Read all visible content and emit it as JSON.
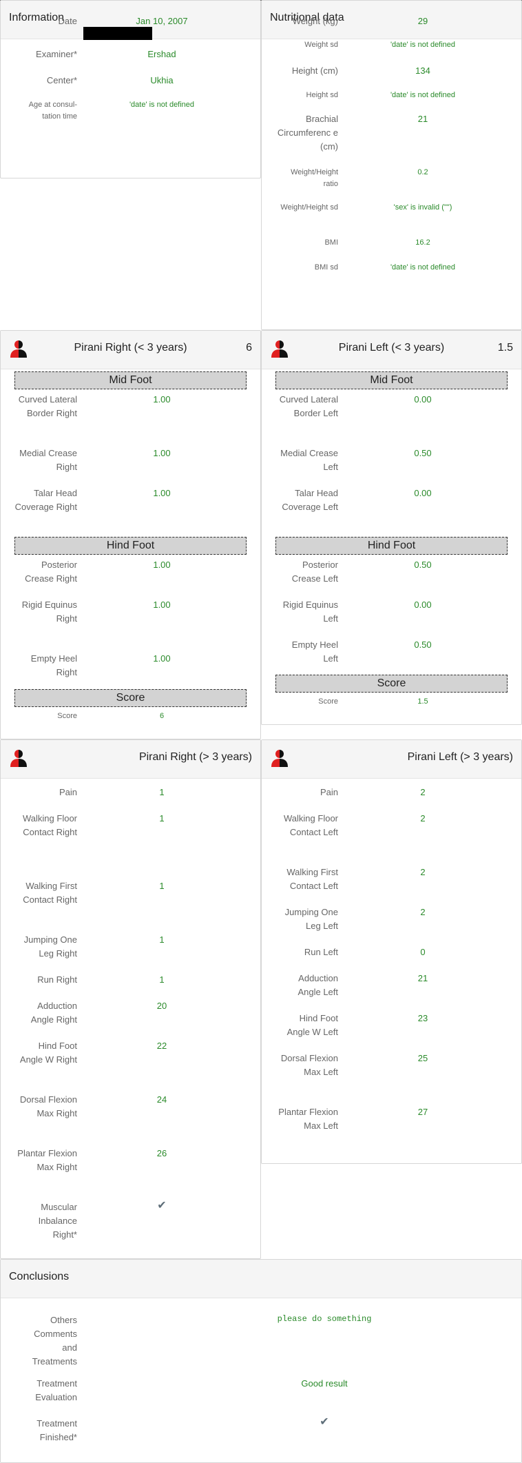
{
  "information": {
    "title": "Information",
    "date_label": "Date",
    "date_value": "Jan 10, 2007",
    "examiner_label": "Examiner*",
    "examiner_value": "Ershad",
    "center_label": "Center*",
    "center_value": "Ukhia",
    "age_label": "Age at consul-tation time",
    "age_value": "'date' is not defined"
  },
  "nutrition": {
    "title": "Nutritional data",
    "weight_label": "Weight (kg)",
    "weight_value": "29",
    "weight_sd_label": "Weight sd",
    "weight_sd_value": "'date' is not defined",
    "height_label": "Height (cm)",
    "height_value": "134",
    "height_sd_label": "Height sd",
    "height_sd_value": "'date' is not defined",
    "brachial_label": "Brachial Circumferenc e (cm)",
    "brachial_value": "21",
    "wh_ratio_label": "Weight/Height ratio",
    "wh_ratio_value": "0.2",
    "wh_sd_label": "Weight/Height sd",
    "wh_sd_value": "'sex' is invalid (\"\")",
    "bmi_label": "BMI",
    "bmi_value": "16.2",
    "bmi_sd_label": "BMI sd",
    "bmi_sd_value": "'date' is not defined"
  },
  "pirani_right_lt3": {
    "title": "Pirani Right (< 3 years)",
    "score_header": "6",
    "mid_foot": "Mid Foot",
    "curved_label": "Curved Lateral Border Right",
    "curved_value": "1.00",
    "medial_label": "Medial Crease Right",
    "medial_value": "1.00",
    "talar_label": "Talar Head Coverage Right",
    "talar_value": "1.00",
    "hind_foot": "Hind Foot",
    "posterior_label": "Posterior Crease Right",
    "posterior_value": "1.00",
    "rigid_label": "Rigid Equinus Right",
    "rigid_value": "1.00",
    "heel_label": "Empty Heel Right",
    "heel_value": "1.00",
    "score_section": "Score",
    "score_label": "Score",
    "score_value": "6"
  },
  "pirani_left_lt3": {
    "title": "Pirani Left (< 3 years)",
    "score_header": "1.5",
    "mid_foot": "Mid Foot",
    "curved_label": "Curved Lateral Border Left",
    "curved_value": "0.00",
    "medial_label": "Medial Crease Left",
    "medial_value": "0.50",
    "talar_label": "Talar Head Coverage Left",
    "talar_value": "0.00",
    "hind_foot": "Hind Foot",
    "posterior_label": "Posterior Crease Left",
    "posterior_value": "0.50",
    "rigid_label": "Rigid Equinus Left",
    "rigid_value": "0.00",
    "heel_label": "Empty Heel Left",
    "heel_value": "0.50",
    "score_section": "Score",
    "score_label": "Score",
    "score_value": "1.5"
  },
  "pirani_right_gt3": {
    "title": "Pirani Right (> 3 years)",
    "pain_label": "Pain",
    "pain_value": "1",
    "walking_floor_label": "Walking Floor Contact Right",
    "walking_floor_value": "1",
    "walking_first_label": "Walking First Contact Right",
    "walking_first_value": "1",
    "jumping_label": "Jumping One Leg Right",
    "jumping_value": "1",
    "run_label": "Run Right",
    "run_value": "1",
    "adduction_label": "Adduction Angle Right",
    "adduction_value": "20",
    "hindfoot_label": "Hind Foot Angle W Right",
    "hindfoot_value": "22",
    "dorsal_label": "Dorsal Flexion Max Right",
    "dorsal_value": "24",
    "plantar_label": "Plantar Flexion Max Right",
    "plantar_value": "26",
    "muscular_label": "Muscular Inbalance Right*",
    "muscular_value": "✔"
  },
  "pirani_left_gt3": {
    "title": "Pirani Left (> 3 years)",
    "pain_label": "Pain",
    "pain_value": "2",
    "walking_floor_label": "Walking Floor Contact Left",
    "walking_floor_value": "2",
    "walking_first_label": "Walking First Contact Left",
    "walking_first_value": "2",
    "jumping_label": "Jumping One Leg Left",
    "jumping_value": "2",
    "run_label": "Run Left",
    "run_value": "0",
    "adduction_label": "Adduction Angle Left",
    "adduction_value": "21",
    "hindfoot_label": "Hind Foot Angle W Left",
    "hindfoot_value": "23",
    "dorsal_label": "Dorsal Flexion Max Left",
    "dorsal_value": "25",
    "plantar_label": "Plantar Flexion Max Left",
    "plantar_value": "27"
  },
  "conclusions": {
    "title": "Conclusions",
    "others_label": "Others Comments and Treatments",
    "others_value": "please do something",
    "evaluation_label": "Treatment Evaluation",
    "evaluation_value": "Good result",
    "finished_label": "Treatment Finished*",
    "finished_value": "✔"
  },
  "icons": {
    "person": "person-red-black-icon",
    "check": "checkmark-icon"
  },
  "colors": {
    "value_green": "#2a8a2a",
    "header_bg": "#f5f5f5",
    "section_bg": "#d3d3d3",
    "icon_red": "#e02020"
  }
}
